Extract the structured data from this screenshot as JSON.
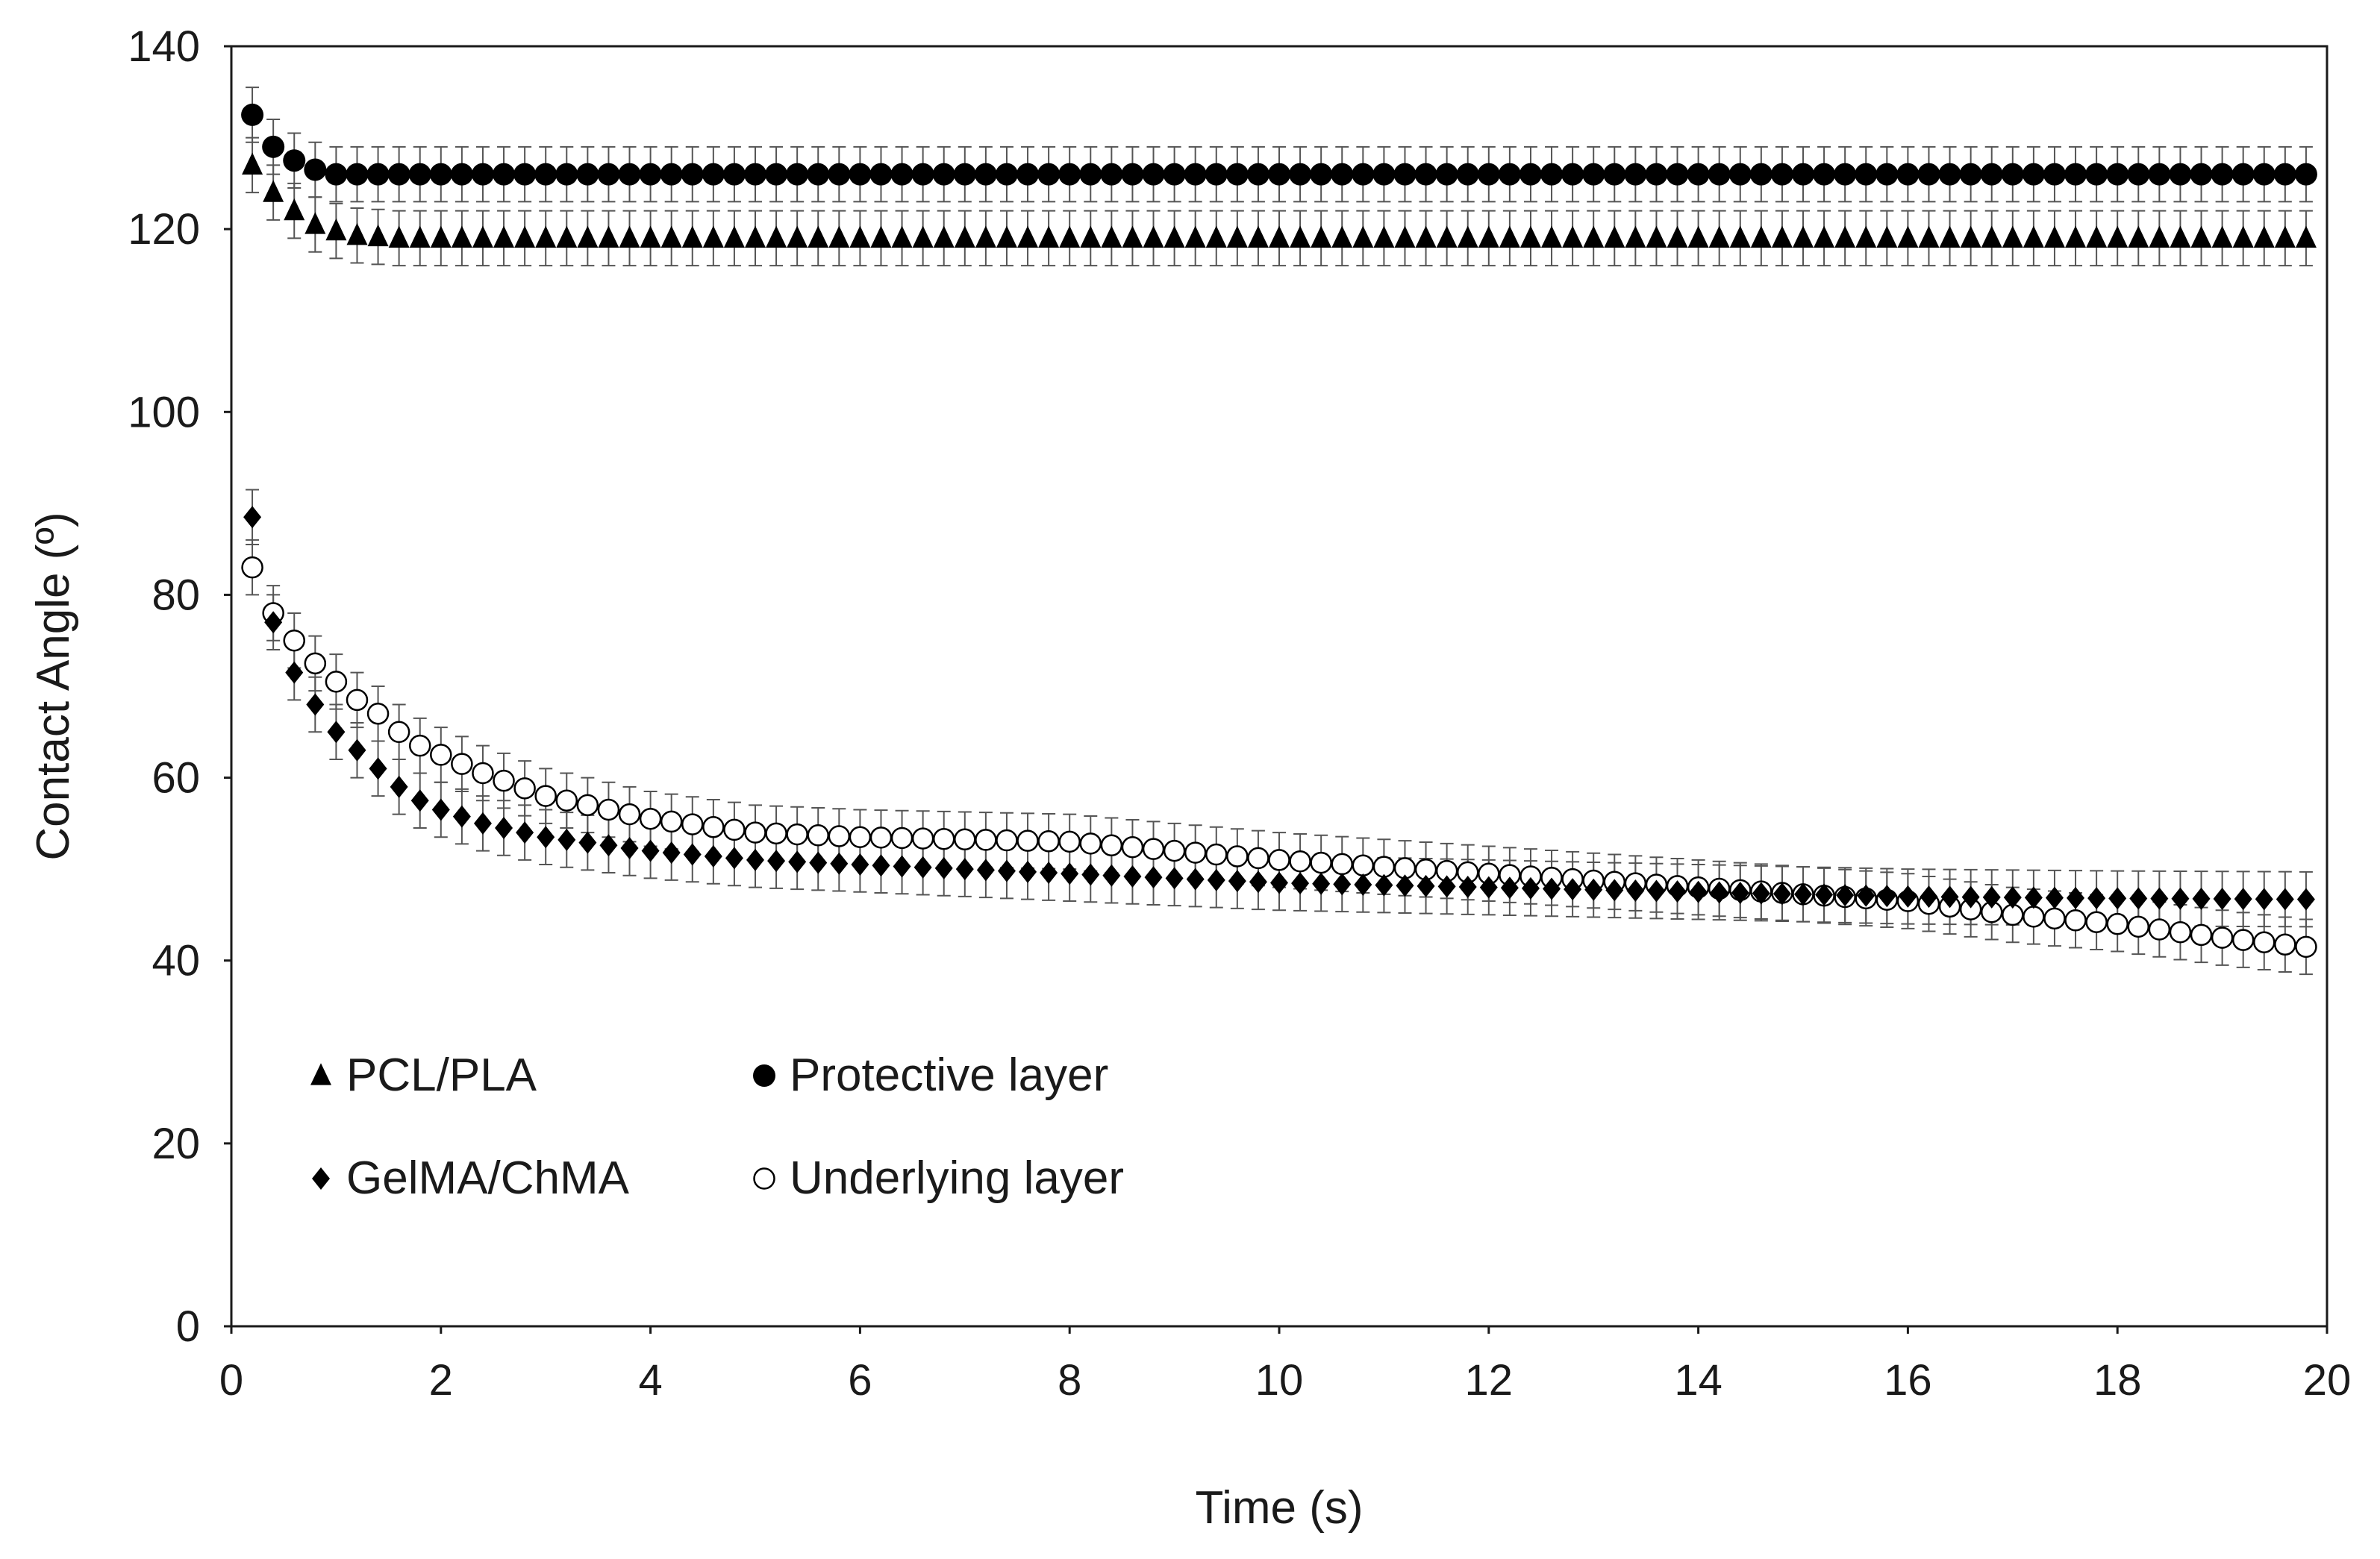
{
  "chart_data": {
    "type": "scatter",
    "title": "",
    "xlabel": "Time (s)",
    "ylabel": "Contact Angle (º)",
    "xlim": [
      0,
      20
    ],
    "ylim": [
      0,
      140
    ],
    "x_ticks": [
      "0",
      "2",
      "4",
      "6",
      "8",
      "10",
      "12",
      "14",
      "16",
      "18",
      "20"
    ],
    "y_ticks": [
      "0",
      "20",
      "40",
      "60",
      "80",
      "100",
      "120",
      "140"
    ],
    "grid": false,
    "error_bars": true,
    "legend": {
      "placement": "bottom-left inside plot",
      "entries": [
        {
          "name": "PCL/PLA",
          "marker": "triangle-filled"
        },
        {
          "name": "Protective layer",
          "marker": "circle-filled"
        },
        {
          "name": "GelMA/ChMA",
          "marker": "diamond-filled"
        },
        {
          "name": "Underlying layer",
          "marker": "circle-open"
        }
      ]
    },
    "sampling": {
      "x_start": 0.2,
      "x_end": 19.8,
      "x_step": 0.2
    },
    "series": [
      {
        "name": "PCL/PLA",
        "marker": "triangle-filled",
        "key_points": [
          [
            0.2,
            127
          ],
          [
            0.4,
            124
          ],
          [
            0.6,
            122
          ],
          [
            0.8,
            120.5
          ],
          [
            1.0,
            119.8
          ],
          [
            1.2,
            119.3
          ],
          [
            1.6,
            119
          ],
          [
            19.8,
            119
          ]
        ],
        "error": 3
      },
      {
        "name": "Protective layer",
        "marker": "circle-filled",
        "key_points": [
          [
            0.2,
            132.5
          ],
          [
            0.4,
            129
          ],
          [
            0.6,
            127.5
          ],
          [
            0.8,
            126.5
          ],
          [
            1.0,
            126
          ],
          [
            1.4,
            126
          ],
          [
            19.8,
            126
          ]
        ],
        "error": 3
      },
      {
        "name": "GelMA/ChMA",
        "marker": "diamond-filled",
        "key_points": [
          [
            0.2,
            88.5
          ],
          [
            0.4,
            77
          ],
          [
            0.6,
            71.5
          ],
          [
            0.8,
            68
          ],
          [
            1.0,
            65
          ],
          [
            1.2,
            63
          ],
          [
            1.4,
            61
          ],
          [
            1.6,
            59
          ],
          [
            1.8,
            57.5
          ],
          [
            2.0,
            56.5
          ],
          [
            2.4,
            55
          ],
          [
            3.0,
            53.5
          ],
          [
            4.0,
            52
          ],
          [
            5.0,
            51
          ],
          [
            6.0,
            50.5
          ],
          [
            8.0,
            49.5
          ],
          [
            10.0,
            48.5
          ],
          [
            12.0,
            48
          ],
          [
            14.0,
            47.5
          ],
          [
            16.0,
            47
          ],
          [
            18.0,
            46.8
          ],
          [
            19.8,
            46.7
          ]
        ],
        "error": 3
      },
      {
        "name": "Underlying layer",
        "marker": "circle-open",
        "key_points": [
          [
            0.2,
            83
          ],
          [
            0.4,
            78
          ],
          [
            0.6,
            75
          ],
          [
            0.8,
            72.5
          ],
          [
            1.0,
            70.5
          ],
          [
            1.2,
            68.5
          ],
          [
            1.4,
            67
          ],
          [
            1.6,
            65
          ],
          [
            1.8,
            63.5
          ],
          [
            2.0,
            62.5
          ],
          [
            2.4,
            60.5
          ],
          [
            3.0,
            58
          ],
          [
            4.0,
            55.5
          ],
          [
            5.0,
            54
          ],
          [
            6.0,
            53.5
          ],
          [
            8.0,
            53
          ],
          [
            9.0,
            52
          ],
          [
            10.0,
            51
          ],
          [
            12.0,
            49.5
          ],
          [
            14.0,
            48
          ],
          [
            16.0,
            46.5
          ],
          [
            17.0,
            45
          ],
          [
            18.0,
            44
          ],
          [
            19.0,
            42.5
          ],
          [
            19.8,
            41.5
          ]
        ],
        "error": 3
      }
    ]
  }
}
